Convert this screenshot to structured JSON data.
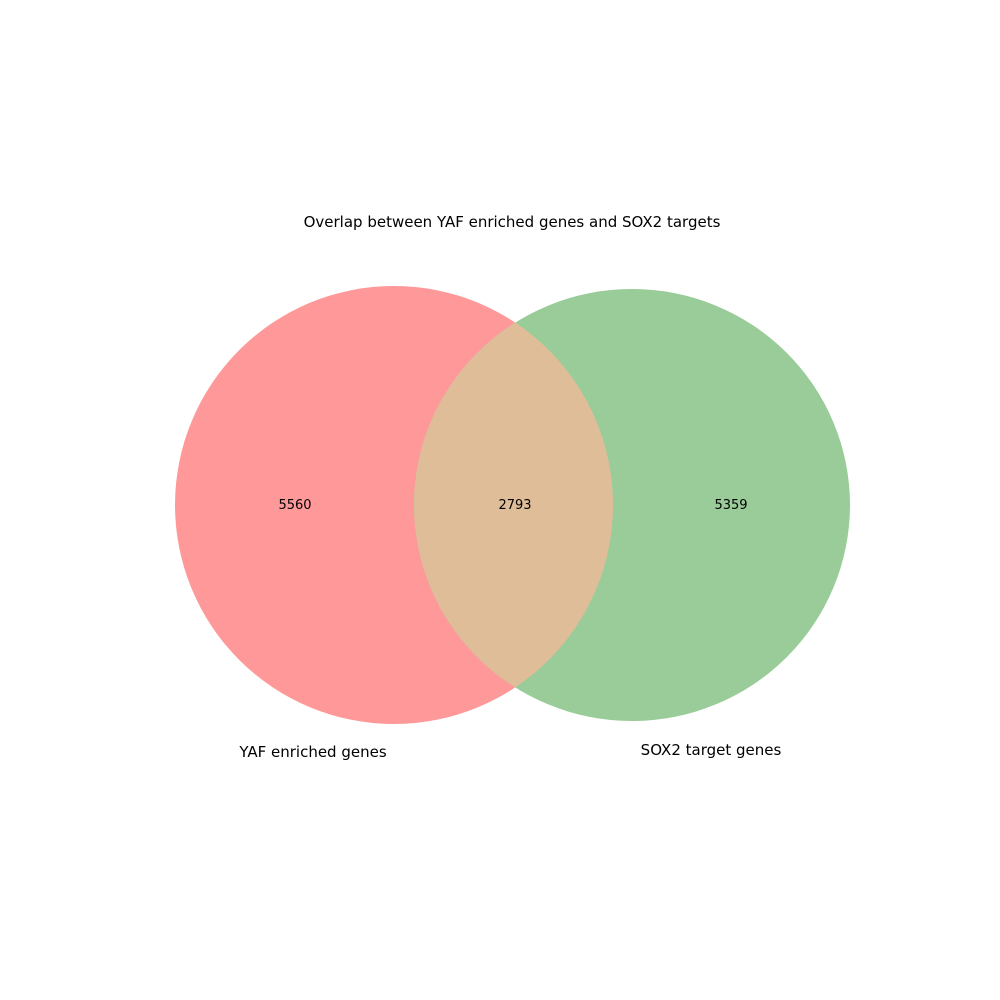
{
  "title": "Overlap between YAF enriched genes and SOX2 targets",
  "sets": [
    {
      "name": "YAF enriched genes",
      "color": "#ff9999"
    },
    {
      "name": "SOX2 target genes",
      "color": "#99cc99"
    }
  ],
  "overlap_color": "#e0bd99",
  "counts": {
    "only_a": "5560",
    "both": "2793",
    "only_b": "5359"
  }
}
